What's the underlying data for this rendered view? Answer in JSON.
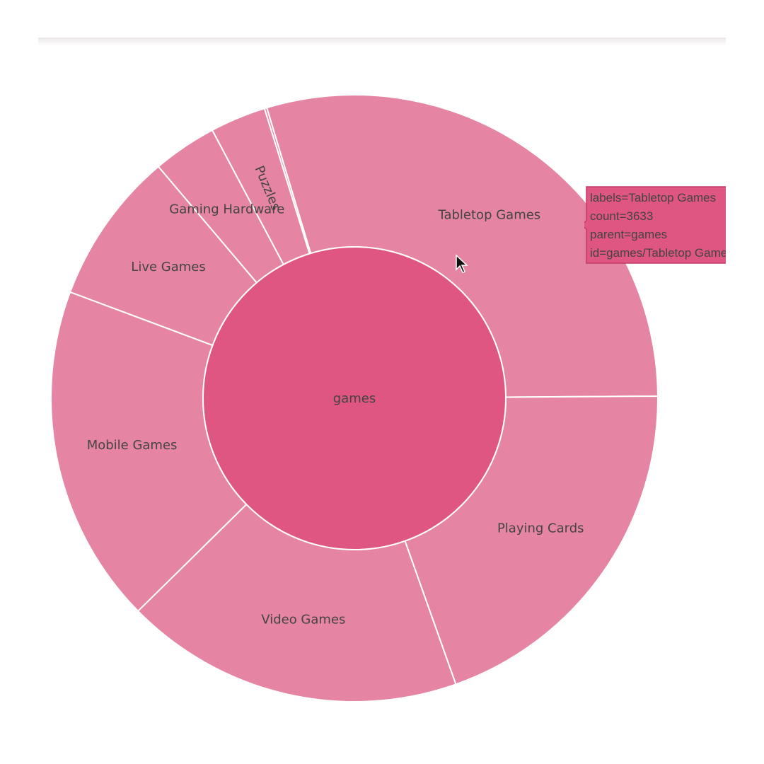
{
  "chart_data": {
    "type": "sunburst",
    "root": {
      "label": "games",
      "color": "#e05682"
    },
    "children": [
      {
        "label": "Tabletop Games",
        "value": 3633
      },
      {
        "label": "",
        "value": 16
      },
      {
        "label": "Puzzles",
        "value": 365
      },
      {
        "label": "Gaming Hardware",
        "value": 420
      },
      {
        "label": "Live Games",
        "value": 1000
      },
      {
        "label": "Mobile Games",
        "value": 2220
      },
      {
        "label": "Video Games",
        "value": 2220
      },
      {
        "label": "Playing Cards",
        "value": 2420
      }
    ],
    "child_color": "#e585a3",
    "line_color": "#ffffff"
  },
  "tooltip": {
    "lines": [
      "labels=Tabletop Games",
      "count=3633",
      "parent=games",
      "id=games/Tabletop Games"
    ],
    "background": "#e05682",
    "border": "#c43a68"
  }
}
